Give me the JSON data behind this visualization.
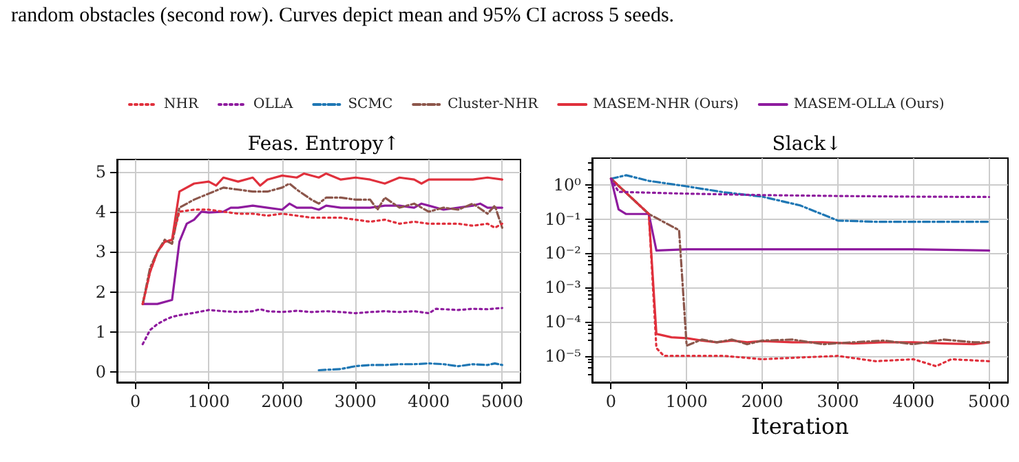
{
  "chart_data": [
    {
      "type": "line",
      "title": "Feas. Entropy↑",
      "annotations": [
        "random obstacles (second row). Curves depict mean and 95% CI across 5 seeds."
      ],
      "xlim": [
        -250,
        5250
      ],
      "xticks": [
        0,
        1000,
        2000,
        3000,
        4000,
        5000
      ],
      "ylim": [
        -0.25,
        5.3
      ],
      "yticks": [
        0,
        1,
        2,
        3,
        4,
        5
      ],
      "grid": true,
      "legend": "top",
      "marker": "none",
      "series": [
        {
          "name": "NHR",
          "color": "#e0303c",
          "line_style": "dotted",
          "x": [
            100,
            200,
            300,
            400,
            500,
            600,
            800,
            1000,
            1200,
            1400,
            1600,
            1800,
            2000,
            2200,
            2400,
            2600,
            2800,
            3000,
            3200,
            3400,
            3600,
            3800,
            4000,
            4200,
            4400,
            4600,
            4800,
            4900,
            5000
          ],
          "values": [
            1.7,
            2.5,
            3.0,
            3.25,
            3.3,
            4.0,
            4.05,
            4.05,
            4.0,
            3.95,
            3.95,
            3.9,
            3.95,
            3.9,
            3.85,
            3.85,
            3.85,
            3.8,
            3.75,
            3.8,
            3.7,
            3.75,
            3.7,
            3.7,
            3.7,
            3.65,
            3.7,
            3.6,
            3.7
          ]
        },
        {
          "name": "OLLA",
          "color": "#8e1b9e",
          "line_style": "dotted",
          "x": [
            100,
            200,
            300,
            400,
            500,
            600,
            800,
            1000,
            1200,
            1400,
            1600,
            1700,
            1800,
            2000,
            2200,
            2400,
            2600,
            2800,
            3000,
            3200,
            3400,
            3600,
            3800,
            4000,
            4100,
            4200,
            4400,
            4600,
            4800,
            5000
          ],
          "values": [
            0.7,
            1.05,
            1.2,
            1.3,
            1.38,
            1.42,
            1.48,
            1.55,
            1.52,
            1.5,
            1.52,
            1.57,
            1.52,
            1.5,
            1.53,
            1.5,
            1.52,
            1.5,
            1.47,
            1.5,
            1.52,
            1.5,
            1.52,
            1.47,
            1.58,
            1.57,
            1.55,
            1.58,
            1.57,
            1.6
          ]
        },
        {
          "name": "SCMC",
          "color": "#1f77b4",
          "line_style": "dashed",
          "x": [
            2500,
            2800,
            3000,
            3200,
            3400,
            3600,
            3800,
            4000,
            4200,
            4400,
            4600,
            4800,
            4900,
            5000
          ],
          "values": [
            0.05,
            0.08,
            0.15,
            0.18,
            0.18,
            0.2,
            0.2,
            0.22,
            0.2,
            0.15,
            0.2,
            0.18,
            0.22,
            0.18
          ]
        },
        {
          "name": "Cluster-NHR",
          "color": "#8c564b",
          "line_style": "dashed",
          "x": [
            100,
            200,
            300,
            400,
            500,
            600,
            800,
            1000,
            1200,
            1400,
            1600,
            1800,
            2000,
            2100,
            2200,
            2400,
            2500,
            2600,
            2800,
            3000,
            3200,
            3300,
            3400,
            3600,
            3800,
            4000,
            4200,
            4400,
            4600,
            4800,
            4900,
            5000
          ],
          "values": [
            1.7,
            2.6,
            3.0,
            3.3,
            3.2,
            4.1,
            4.3,
            4.45,
            4.6,
            4.55,
            4.5,
            4.5,
            4.6,
            4.7,
            4.55,
            4.3,
            4.2,
            4.35,
            4.35,
            4.3,
            4.3,
            4.05,
            4.35,
            4.1,
            4.2,
            4.0,
            4.1,
            4.05,
            4.2,
            3.95,
            4.15,
            3.6
          ]
        },
        {
          "name": "MASEM-NHR (Ours)",
          "color": "#e0303c",
          "line_style": "solid",
          "x": [
            100,
            200,
            300,
            400,
            500,
            600,
            800,
            1000,
            1100,
            1200,
            1400,
            1600,
            1700,
            1800,
            2000,
            2200,
            2300,
            2500,
            2600,
            2800,
            3000,
            3200,
            3400,
            3600,
            3800,
            3900,
            4000,
            4200,
            4400,
            4600,
            4800,
            5000
          ],
          "values": [
            1.7,
            2.5,
            3.0,
            3.25,
            3.3,
            4.5,
            4.7,
            4.75,
            4.65,
            4.85,
            4.75,
            4.85,
            4.65,
            4.8,
            4.9,
            4.85,
            4.95,
            4.85,
            4.95,
            4.8,
            4.85,
            4.8,
            4.7,
            4.85,
            4.8,
            4.7,
            4.8,
            4.8,
            4.8,
            4.8,
            4.85,
            4.8
          ]
        },
        {
          "name": "MASEM-OLLA (Ours)",
          "color": "#8e1b9e",
          "line_style": "solid",
          "x": [
            100,
            300,
            500,
            600,
            700,
            800,
            900,
            1000,
            1200,
            1300,
            1400,
            1600,
            1800,
            2000,
            2100,
            2200,
            2400,
            2500,
            2600,
            2800,
            3000,
            3200,
            3400,
            3600,
            3800,
            3900,
            4000,
            4200,
            4400,
            4600,
            4700,
            4800,
            5000
          ],
          "values": [
            1.7,
            1.7,
            1.8,
            3.25,
            3.7,
            3.8,
            4.0,
            3.98,
            4.0,
            4.1,
            4.1,
            4.15,
            4.1,
            4.05,
            4.2,
            4.1,
            4.1,
            4.05,
            4.15,
            4.1,
            4.1,
            4.1,
            4.15,
            4.15,
            4.1,
            4.2,
            4.15,
            4.05,
            4.1,
            4.15,
            4.2,
            4.1,
            4.1
          ]
        }
      ]
    },
    {
      "type": "line",
      "title": "Slack↓",
      "xlabel": "Iteration",
      "log": "y",
      "xlim": [
        -250,
        5250
      ],
      "xticks": [
        0,
        1000,
        2000,
        3000,
        4000,
        5000
      ],
      "ylim": [
        1.7e-06,
        6
      ],
      "yticks": [
        {
          "value": 1,
          "label": "10⁰"
        },
        {
          "value": 0.1,
          "label": "10⁻¹"
        },
        {
          "value": 0.01,
          "label": "10⁻²"
        },
        {
          "value": 0.001,
          "label": "10⁻³"
        },
        {
          "value": 0.0001,
          "label": "10⁻⁴"
        },
        {
          "value": 1e-05,
          "label": "10⁻⁵"
        }
      ],
      "grid": true,
      "marker": "none",
      "series": [
        {
          "color": "#e0303c",
          "line_style": "dotted",
          "x": [
            0,
            500,
            600,
            700,
            1000,
            1500,
            2000,
            2500,
            3000,
            3500,
            4000,
            4300,
            4500,
            5000
          ],
          "values": [
            1.5,
            0.14,
            1.7e-05,
            1e-05,
            1e-05,
            1e-05,
            8e-06,
            9e-06,
            1e-05,
            7e-06,
            8e-06,
            5e-06,
            8e-06,
            7e-06
          ]
        },
        {
          "color": "#8e1b9e",
          "line_style": "dotted",
          "x": [
            0,
            100,
            1000,
            2000,
            3000,
            4000,
            5000
          ],
          "values": [
            1.5,
            0.62,
            0.55,
            0.5,
            0.47,
            0.45,
            0.44
          ]
        },
        {
          "color": "#1f77b4",
          "line_style": "dashed",
          "x": [
            0,
            200,
            500,
            1000,
            1500,
            2000,
            2500,
            3000,
            3500,
            4000,
            4500,
            5000
          ],
          "values": [
            1.5,
            1.9,
            1.3,
            0.9,
            0.6,
            0.45,
            0.25,
            0.09,
            0.083,
            0.083,
            0.083,
            0.083
          ]
        },
        {
          "color": "#8c564b",
          "line_style": "dashed",
          "x": [
            0,
            500,
            900,
            1000,
            1200,
            1400,
            1600,
            1800,
            2000,
            2400,
            2800,
            3200,
            3600,
            4000,
            4400,
            4800,
            5000
          ],
          "values": [
            1.5,
            0.14,
            0.047,
            2e-05,
            3e-05,
            2.5e-05,
            3e-05,
            2.2e-05,
            2.8e-05,
            3e-05,
            2.2e-05,
            2.5e-05,
            2.8e-05,
            2.2e-05,
            3e-05,
            2.5e-05,
            2.5e-05
          ]
        },
        {
          "color": "#e0303c",
          "line_style": "solid",
          "x": [
            0,
            500,
            600,
            800,
            1000,
            1200,
            1400,
            1600,
            1800,
            2000,
            2400,
            2800,
            3200,
            3600,
            4000,
            4400,
            4800,
            5000
          ],
          "values": [
            1.5,
            0.14,
            4.4e-05,
            3.5e-05,
            3.3e-05,
            2.8e-05,
            2.5e-05,
            2.8e-05,
            2.5e-05,
            2.7e-05,
            2.5e-05,
            2.5e-05,
            2.3e-05,
            2.5e-05,
            2.5e-05,
            2.3e-05,
            2.2e-05,
            2.5e-05
          ]
        },
        {
          "color": "#8e1b9e",
          "line_style": "solid",
          "x": [
            0,
            100,
            200,
            500,
            600,
            1000,
            2000,
            3000,
            4000,
            5000
          ],
          "values": [
            1.5,
            0.19,
            0.14,
            0.14,
            0.012,
            0.013,
            0.013,
            0.013,
            0.013,
            0.012
          ]
        }
      ]
    }
  ]
}
